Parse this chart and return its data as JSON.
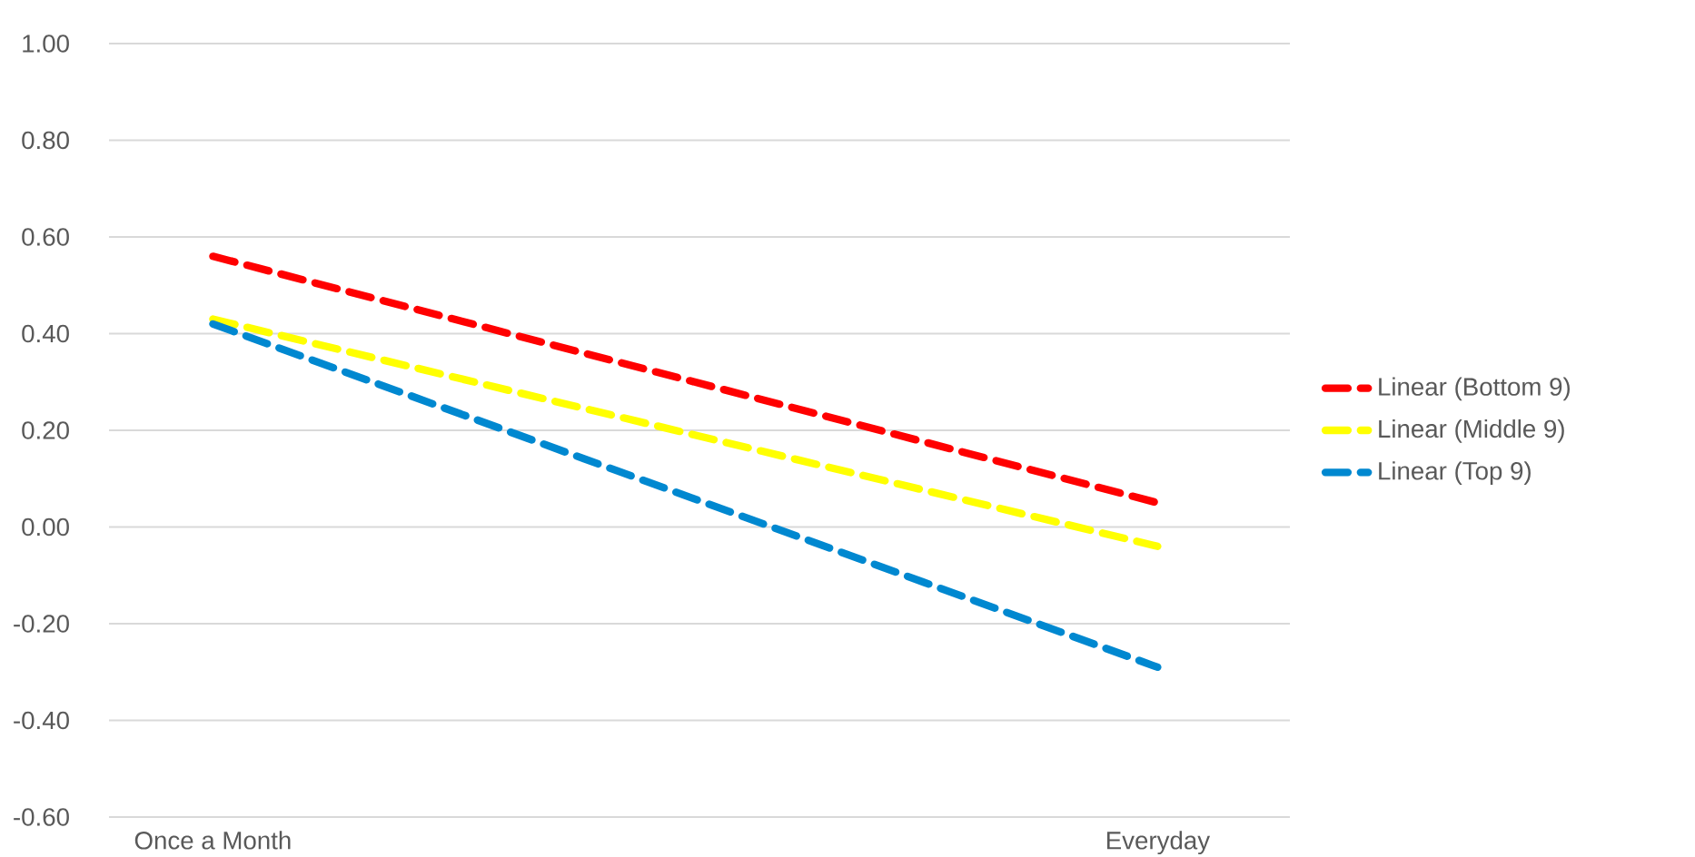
{
  "chart_data": {
    "type": "line",
    "categories": [
      "Once a Month",
      "Everyday"
    ],
    "series": [
      {
        "name": "Linear (Bottom 9)",
        "color": "#ff0000",
        "values": [
          0.56,
          0.05
        ]
      },
      {
        "name": "Linear (Middle 9)",
        "color": "#ffff00",
        "values": [
          0.43,
          -0.04
        ]
      },
      {
        "name": "Linear (Top 9)",
        "color": "#0088d0",
        "values": [
          0.42,
          -0.29
        ]
      }
    ],
    "ylim": [
      -0.6,
      1.0
    ],
    "yticks": [
      {
        "value": -0.6,
        "label": "-0.60"
      },
      {
        "value": -0.4,
        "label": "-0.40"
      },
      {
        "value": -0.2,
        "label": "-0.20"
      },
      {
        "value": 0,
        "label": "0.00"
      },
      {
        "value": 0.2,
        "label": "0.20"
      },
      {
        "value": 0.4,
        "label": "0.40"
      },
      {
        "value": 0.6,
        "label": "0.60"
      },
      {
        "value": 0.8,
        "label": "0.80"
      },
      {
        "value": 1.0,
        "label": "1.00"
      }
    ],
    "grid": "y",
    "legend": "right",
    "line_style": "dashed",
    "marker": "none"
  }
}
